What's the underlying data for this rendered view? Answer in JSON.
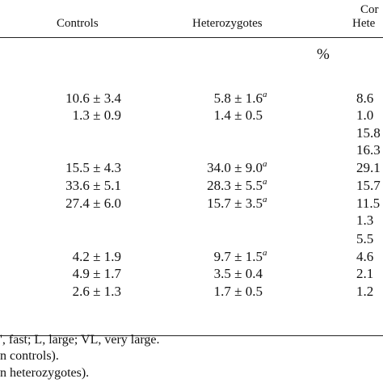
{
  "header": {
    "col1": "Controls",
    "col2": "Heterozygotes",
    "col3_line1": "Cor",
    "col3_line2": "Hete",
    "unit": "%"
  },
  "rows": [
    {
      "c1": "10.6 ± 3.4",
      "c2": "5.8 ± 1.6",
      "c2_sup": "a",
      "c3": "8.6"
    },
    {
      "c1": "1.3 ± 0.9",
      "c2": "1.4 ± 0.5",
      "c2_sup": "",
      "c3": "1.0"
    },
    {
      "c1": "",
      "c2": "",
      "c2_sup": "",
      "c3": "15.8"
    },
    {
      "c1": "",
      "c2": "",
      "c2_sup": "",
      "c3": "16.3"
    },
    {
      "c1": "15.5 ± 4.3",
      "c2": "34.0 ± 9.0",
      "c2_sup": "a",
      "c3": "29.1"
    },
    {
      "c1": "33.6 ± 5.1",
      "c2": "28.3 ± 5.5",
      "c2_sup": "a",
      "c3": "15.7"
    },
    {
      "c1": "27.4 ± 6.0",
      "c2": "15.7 ± 3.5",
      "c2_sup": "a",
      "c3": "11.5"
    },
    {
      "c1": "",
      "c2": "",
      "c2_sup": "",
      "c3": "1.3"
    },
    {
      "c1": "",
      "c2": "",
      "c2_sup": "",
      "c3": "5.5"
    },
    {
      "c1": "4.2 ± 1.9",
      "c2": "9.7 ± 1.5",
      "c2_sup": "a",
      "c3": "4.6"
    },
    {
      "c1": "4.9 ± 1.7",
      "c2": "3.5 ± 0.4",
      "c2_sup": "",
      "c3": "2.1"
    },
    {
      "c1": "2.6 ± 1.3",
      "c2": "1.7 ± 0.5",
      "c2_sup": "",
      "c3": "1.2"
    }
  ],
  "footnotes": [
    "', fast; L, large; VL, very large.",
    "n controls).",
    "n heterozygotes)."
  ]
}
